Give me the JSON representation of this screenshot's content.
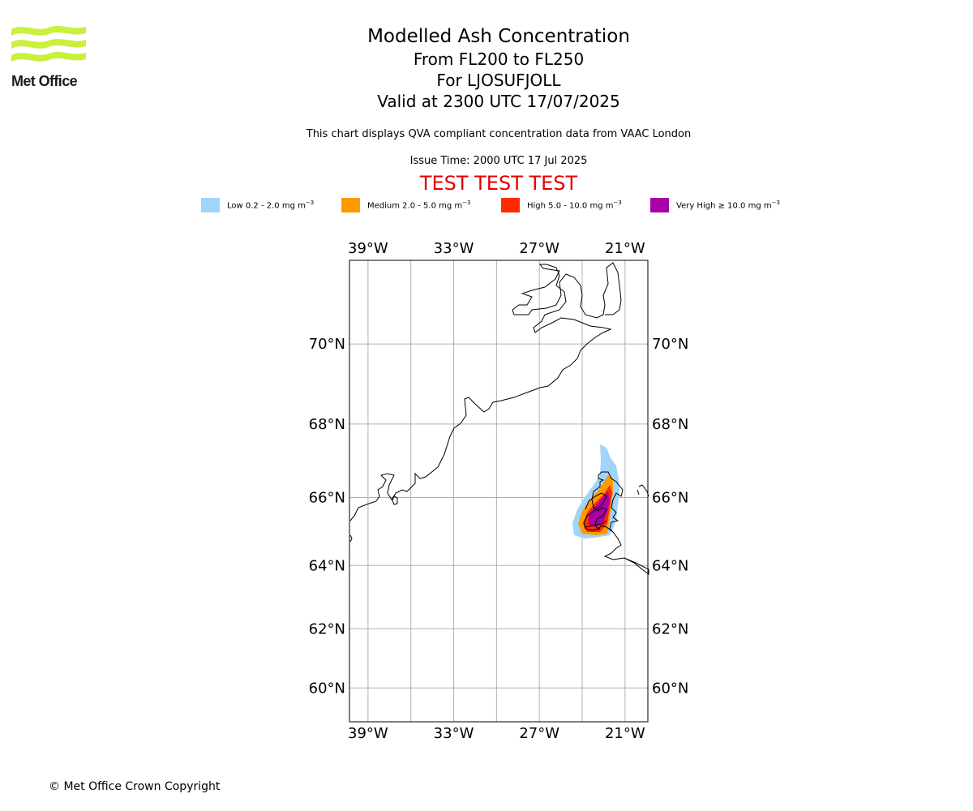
{
  "logo": {
    "text": "Met Office",
    "colors": {
      "waves": "#c8f03c",
      "text": "#1c1c1c"
    }
  },
  "header": {
    "title": "Modelled Ash Concentration",
    "levels": "From FL200 to FL250",
    "location": "For LJOSUFJOLL",
    "valid": "Valid at 2300 UTC 17/07/2025",
    "description": "This chart displays QVA compliant concentration data from VAAC London",
    "issue_time": "Issue Time: 2000 UTC 17 Jul 2025",
    "test_banner": "TEST TEST TEST",
    "test_color": "#e60000"
  },
  "legend": [
    {
      "label": "Low 0.2 - 2.0 mg m",
      "unit_exp": "−3",
      "color": "#a0d4fa"
    },
    {
      "label": "Medium 2.0 - 5.0 mg m",
      "unit_exp": "−3",
      "color": "#ff9900"
    },
    {
      "label": "High 5.0 - 10.0 mg m",
      "unit_exp": "−3",
      "color": "#ff2a00"
    },
    {
      "label": "Very High  ≥  10.0 mg m",
      "unit_exp": "−3",
      "color": "#aa00aa"
    }
  ],
  "map": {
    "lon_range": [
      -40.3,
      -19.4
    ],
    "lat_range": [
      58.8,
      71.9
    ],
    "projection": "mercator",
    "grid": true,
    "lon_ticks": [
      -39,
      -36,
      -33,
      -30,
      -27,
      -24,
      -21
    ],
    "lon_tick_labels": [
      "39°W",
      "33°W",
      "27°W",
      "21°W"
    ],
    "lon_label_values": [
      -39,
      -33,
      -27,
      -21
    ],
    "lat_ticks": [
      60,
      62,
      64,
      66,
      68,
      70
    ],
    "lat_tick_labels": [
      "60°N",
      "62°N",
      "64°N",
      "66°N",
      "68°N",
      "70°N"
    ],
    "grid_color": "#b0b0b0",
    "coast_color": "#000000"
  },
  "footer": {
    "copyright": "© Met Office Crown Copyright"
  }
}
